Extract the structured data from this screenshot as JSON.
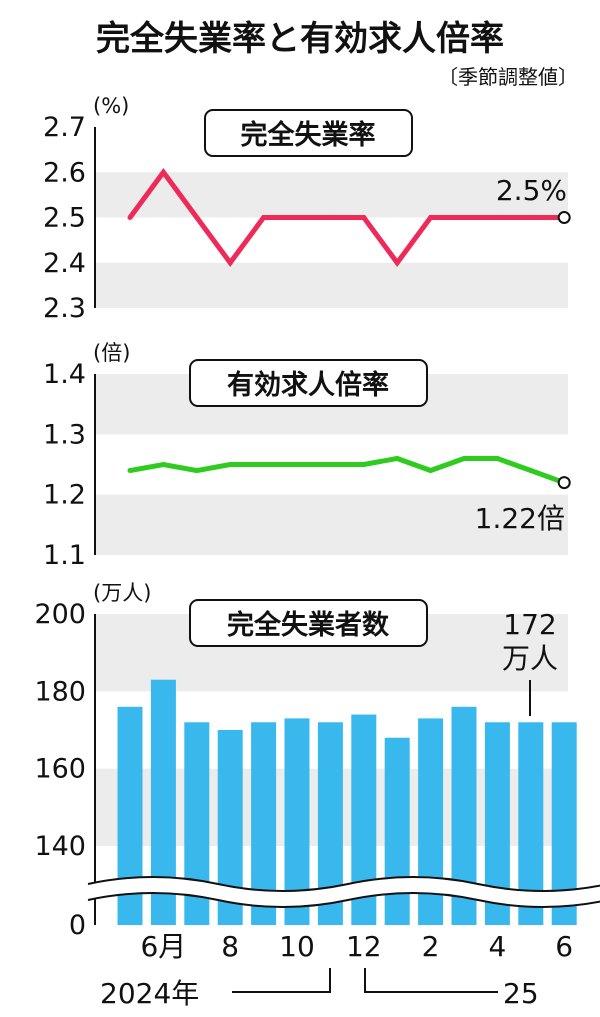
{
  "title": "完全失業率と有効求人倍率",
  "note": "〔季節調整値〕",
  "chart_data": [
    {
      "type": "line",
      "title": "完全失業率",
      "unit": "(%)",
      "x": [
        "2024-5",
        "2024-6",
        "2024-7",
        "2024-8",
        "2024-9",
        "2024-10",
        "2024-11",
        "2024-12",
        "2025-1",
        "2025-2",
        "2025-3",
        "2025-4",
        "2025-5",
        "2025-6"
      ],
      "values": [
        2.5,
        2.6,
        2.5,
        2.4,
        2.5,
        2.5,
        2.5,
        2.5,
        2.4,
        2.5,
        2.5,
        2.5,
        2.5,
        2.5
      ],
      "ylim": [
        2.3,
        2.7
      ],
      "yticks": [
        "2.7",
        "2.6",
        "2.5",
        "2.4",
        "2.3"
      ],
      "color": "#ee2a58",
      "last_label": "2.5%"
    },
    {
      "type": "line",
      "title": "有効求人倍率",
      "unit": "(倍)",
      "x": [
        "2024-5",
        "2024-6",
        "2024-7",
        "2024-8",
        "2024-9",
        "2024-10",
        "2024-11",
        "2024-12",
        "2025-1",
        "2025-2",
        "2025-3",
        "2025-4",
        "2025-5",
        "2025-6"
      ],
      "values": [
        1.24,
        1.25,
        1.24,
        1.25,
        1.25,
        1.25,
        1.25,
        1.25,
        1.26,
        1.24,
        1.26,
        1.26,
        1.24,
        1.22
      ],
      "ylim": [
        1.1,
        1.4
      ],
      "yticks": [
        "1.4",
        "1.3",
        "1.2",
        "1.1"
      ],
      "color": "#2fcc1f",
      "last_label": "1.22倍"
    },
    {
      "type": "bar",
      "title": "完全失業者数",
      "unit": "(万人)",
      "x": [
        "2024-5",
        "2024-6",
        "2024-7",
        "2024-8",
        "2024-9",
        "2024-10",
        "2024-11",
        "2024-12",
        "2025-1",
        "2025-2",
        "2025-3",
        "2025-4",
        "2025-5",
        "2025-6"
      ],
      "values": [
        176,
        183,
        172,
        170,
        172,
        173,
        172,
        174,
        168,
        173,
        176,
        172,
        172,
        172
      ],
      "ylim": [
        0,
        200
      ],
      "axis_break": true,
      "yticks": [
        "200",
        "180",
        "160",
        "140",
        "0"
      ],
      "color": "#39b8ee",
      "last_label_value": "172",
      "last_label_unit": "万人"
    }
  ],
  "xaxis": {
    "tick_labels": [
      "6月",
      "8",
      "10",
      "12",
      "2",
      "4",
      "6"
    ],
    "year_2024": "2024年",
    "year_2025": "25"
  }
}
